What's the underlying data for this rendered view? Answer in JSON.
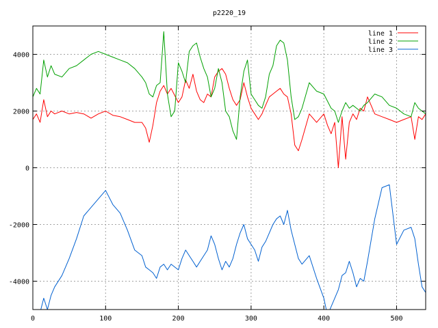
{
  "chart_data": {
    "type": "line",
    "title": "p2220_19",
    "xlabel": "",
    "ylabel": "",
    "xlim": [
      0,
      540
    ],
    "ylim": [
      -5000,
      5000
    ],
    "x_ticks": [
      "0",
      "100",
      "200",
      "300",
      "400",
      "500"
    ],
    "y_ticks": [
      "-4000",
      "-2000",
      "0",
      "2000",
      "4000"
    ],
    "grid": true,
    "legend_position": "top-right",
    "series": [
      {
        "name": "line 1",
        "color": "#ff0000",
        "x": [
          0,
          5,
          10,
          15,
          20,
          25,
          30,
          40,
          50,
          60,
          70,
          80,
          90,
          100,
          110,
          120,
          130,
          140,
          150,
          155,
          160,
          165,
          170,
          175,
          180,
          185,
          190,
          200,
          205,
          210,
          215,
          220,
          225,
          230,
          235,
          240,
          245,
          250,
          255,
          260,
          265,
          270,
          275,
          280,
          285,
          290,
          295,
          300,
          305,
          310,
          315,
          320,
          325,
          330,
          335,
          340,
          345,
          350,
          355,
          360,
          365,
          370,
          380,
          390,
          400,
          405,
          410,
          415,
          420,
          425,
          430,
          435,
          440,
          445,
          450,
          455,
          460,
          470,
          480,
          490,
          500,
          510,
          520,
          525,
          530,
          535,
          540
        ],
        "y": [
          1700,
          1900,
          1600,
          2400,
          1800,
          2000,
          1900,
          2000,
          1900,
          1950,
          1900,
          1750,
          1900,
          2000,
          1850,
          1800,
          1700,
          1600,
          1600,
          1400,
          900,
          1500,
          2300,
          2700,
          2900,
          2600,
          2800,
          2300,
          2500,
          3100,
          2800,
          3300,
          2700,
          2400,
          2300,
          2600,
          2500,
          3200,
          3400,
          3500,
          3300,
          2800,
          2400,
          2200,
          2400,
          3000,
          2500,
          2100,
          1900,
          1700,
          1900,
          2200,
          2500,
          2600,
          2700,
          2800,
          2600,
          2500,
          1900,
          800,
          600,
          1000,
          1900,
          1600,
          1900,
          1500,
          1200,
          1600,
          0,
          1800,
          300,
          1600,
          1900,
          1700,
          2100,
          2000,
          2500,
          1900,
          1800,
          1700,
          1600,
          1700,
          1800,
          1000,
          1800,
          1700,
          1900
        ]
      },
      {
        "name": "line 2",
        "color": "#00a000",
        "x": [
          0,
          5,
          10,
          15,
          20,
          25,
          30,
          40,
          50,
          60,
          70,
          80,
          90,
          100,
          110,
          120,
          130,
          140,
          150,
          155,
          160,
          165,
          170,
          175,
          180,
          185,
          190,
          195,
          200,
          205,
          210,
          215,
          220,
          225,
          230,
          235,
          240,
          245,
          250,
          255,
          260,
          265,
          270,
          275,
          280,
          285,
          290,
          295,
          300,
          305,
          310,
          315,
          320,
          325,
          330,
          335,
          340,
          345,
          350,
          355,
          360,
          365,
          370,
          380,
          390,
          400,
          410,
          415,
          420,
          425,
          430,
          435,
          440,
          445,
          450,
          455,
          460,
          470,
          480,
          490,
          500,
          510,
          520,
          525,
          530,
          535,
          540
        ],
        "y": [
          2500,
          2800,
          2600,
          3800,
          3200,
          3600,
          3300,
          3200,
          3500,
          3600,
          3800,
          4000,
          4100,
          4000,
          3900,
          3800,
          3700,
          3500,
          3200,
          3000,
          2600,
          2500,
          2900,
          3000,
          4800,
          2600,
          1800,
          2000,
          3700,
          3400,
          3000,
          4100,
          4300,
          4400,
          3900,
          3500,
          3200,
          2500,
          2800,
          3500,
          3000,
          2000,
          1800,
          1300,
          1000,
          2500,
          3400,
          3800,
          2600,
          2400,
          2200,
          2100,
          2500,
          3300,
          3600,
          4300,
          4500,
          4400,
          3800,
          2500,
          1700,
          1800,
          2100,
          3000,
          2700,
          2600,
          2100,
          2000,
          1600,
          2000,
          2300,
          2100,
          2200,
          2100,
          2000,
          2200,
          2300,
          2600,
          2500,
          2200,
          2100,
          1900,
          1800,
          2300,
          2100,
          2000,
          1900
        ]
      },
      {
        "name": "line 3",
        "color": "#0060d0",
        "x": [
          0,
          5,
          10,
          15,
          20,
          25,
          30,
          40,
          50,
          60,
          70,
          80,
          90,
          100,
          110,
          120,
          130,
          140,
          150,
          155,
          160,
          165,
          170,
          175,
          180,
          185,
          190,
          200,
          205,
          210,
          215,
          220,
          225,
          230,
          235,
          240,
          245,
          250,
          255,
          260,
          265,
          270,
          275,
          280,
          285,
          290,
          295,
          300,
          305,
          310,
          315,
          320,
          325,
          330,
          335,
          340,
          345,
          350,
          355,
          360,
          365,
          370,
          380,
          390,
          400,
          405,
          410,
          415,
          420,
          425,
          430,
          435,
          440,
          445,
          450,
          455,
          460,
          470,
          480,
          490,
          500,
          510,
          520,
          525,
          530,
          535,
          540
        ],
        "y": [
          -5200,
          -5300,
          -5100,
          -4600,
          -5000,
          -4500,
          -4200,
          -3800,
          -3200,
          -2500,
          -1700,
          -1400,
          -1100,
          -800,
          -1300,
          -1600,
          -2200,
          -2900,
          -3100,
          -3500,
          -3600,
          -3700,
          -3900,
          -3500,
          -3400,
          -3600,
          -3400,
          -3600,
          -3200,
          -2900,
          -3100,
          -3300,
          -3500,
          -3300,
          -3100,
          -2900,
          -2400,
          -2700,
          -3200,
          -3600,
          -3300,
          -3500,
          -3200,
          -2700,
          -2300,
          -2000,
          -2500,
          -2700,
          -2900,
          -3300,
          -2800,
          -2600,
          -2300,
          -2000,
          -1800,
          -1700,
          -2000,
          -1500,
          -2200,
          -2700,
          -3200,
          -3400,
          -3100,
          -3900,
          -4600,
          -5200,
          -4900,
          -4600,
          -4300,
          -3800,
          -3700,
          -3300,
          -3700,
          -4200,
          -3900,
          -4000,
          -3300,
          -1800,
          -700,
          -600,
          -2700,
          -2200,
          -2100,
          -2500,
          -3400,
          -4200,
          -4400
        ]
      }
    ]
  }
}
